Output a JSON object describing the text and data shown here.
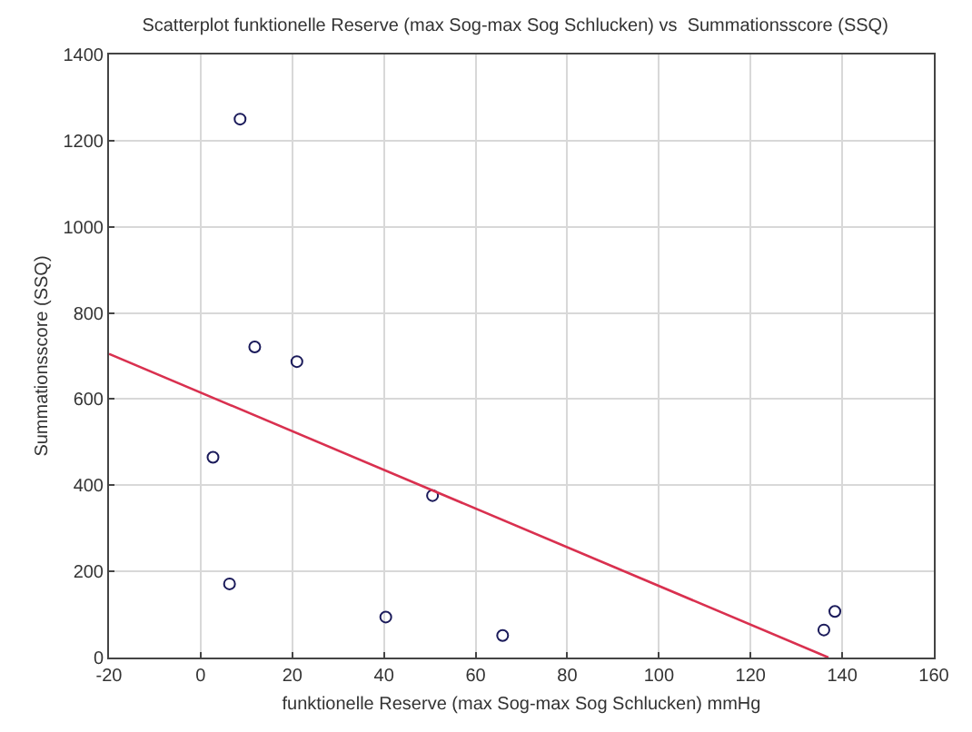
{
  "chart_data": {
    "type": "scatter",
    "title": "Scatterplot funktionelle Reserve (max Sog-max Sog Schlucken) vs  Summationsscore (SSQ)",
    "xlabel": "funktionelle Reserve (max Sog-max Sog Schlucken) mmHg",
    "ylabel": "Summationsscore (SSQ)",
    "series": [
      {
        "type": "scatter",
        "color": "#1a1a5a",
        "marker": "circle",
        "x": [
          8.6,
          11.8,
          21,
          2.7,
          6.3,
          50.6,
          40.4,
          65.9,
          136,
          138.4
        ],
        "values": [
          1250,
          721,
          687,
          465,
          171,
          376,
          94,
          51,
          64,
          107
        ]
      },
      {
        "type": "line",
        "color": "#d9304f",
        "marker": "none",
        "line_style": "solid",
        "x": [
          -20,
          137
        ],
        "values": [
          705,
          0
        ]
      }
    ],
    "xlim": [
      -20,
      160
    ],
    "xticks": [
      -20,
      0,
      20,
      40,
      60,
      80,
      100,
      120,
      140,
      160
    ],
    "ylim": [
      0,
      1400
    ],
    "yticks": [
      0,
      200,
      400,
      600,
      800,
      1000,
      1200,
      1400
    ],
    "grid": true
  }
}
